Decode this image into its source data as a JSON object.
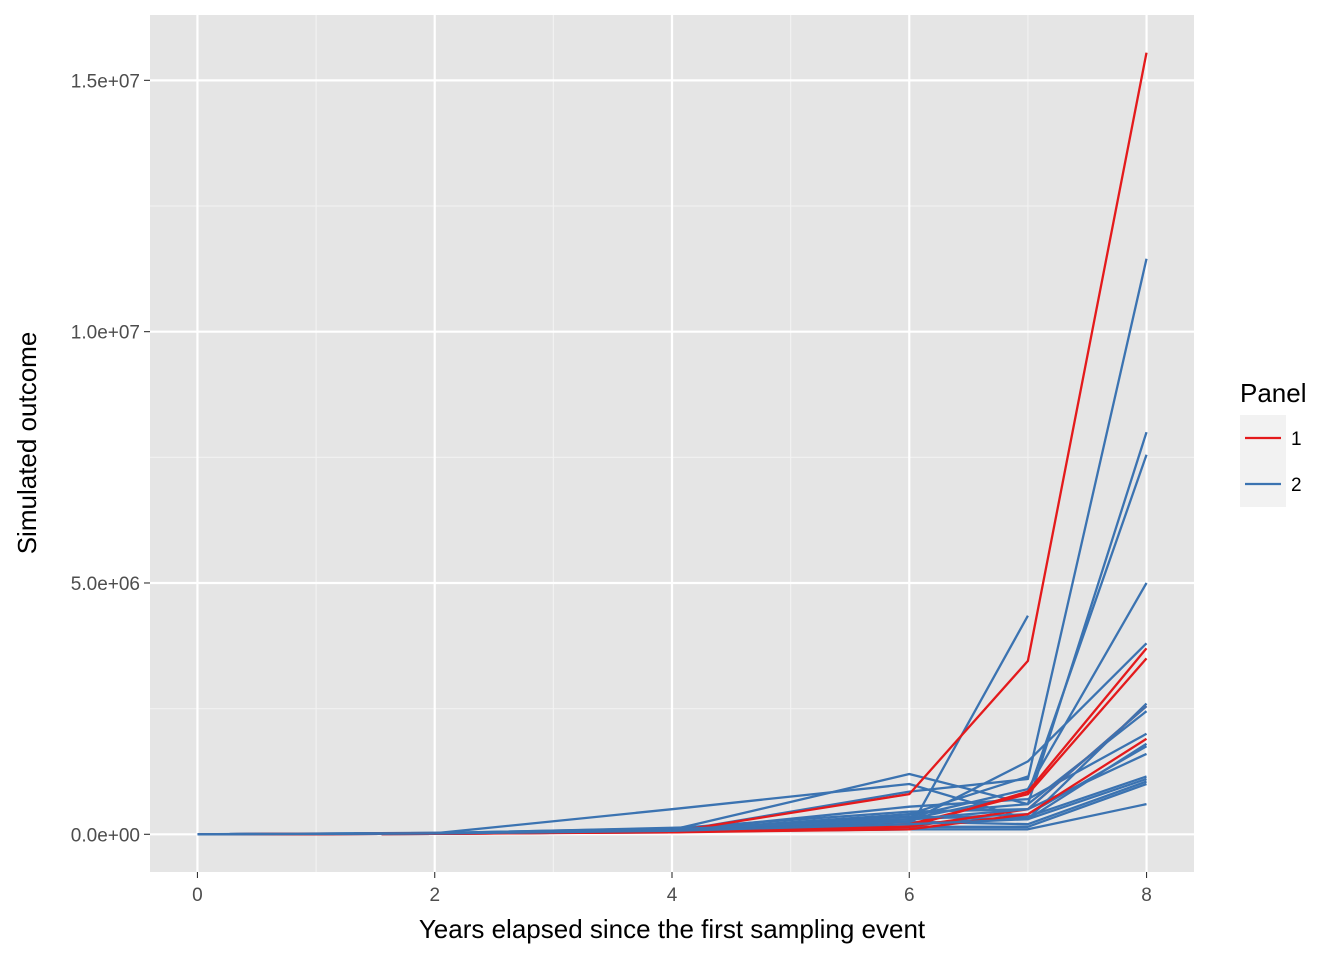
{
  "chart_data": {
    "type": "line",
    "xlabel": "Years elapsed since the first sampling event",
    "ylabel": "Simulated outcome",
    "xlim": [
      -0.4,
      8.4
    ],
    "ylim": [
      -750000,
      16300000
    ],
    "x_ticks": [
      0,
      2,
      4,
      6,
      8
    ],
    "x_tick_labels": [
      "0",
      "2",
      "4",
      "6",
      "8"
    ],
    "y_ticks": [
      0,
      5000000,
      10000000,
      15000000
    ],
    "y_tick_labels": [
      "0.0e+00",
      "5.0e+06",
      "1.0e+07",
      "1.5e+07"
    ],
    "grid": true,
    "legend": {
      "title": "Panel",
      "placement": "right",
      "entries": [
        {
          "label": "1",
          "color": "#e41a1c"
        },
        {
          "label": "2",
          "color": "#3b73b1"
        }
      ]
    },
    "series": [
      {
        "group": "2",
        "color": "#3b73b1",
        "points": [
          [
            0,
            0
          ],
          [
            2,
            20000
          ],
          [
            4,
            60000
          ],
          [
            6,
            100000
          ],
          [
            7,
            4350000
          ]
        ]
      },
      {
        "group": "2",
        "color": "#3b73b1",
        "points": [
          [
            0,
            0
          ],
          [
            2,
            30000
          ],
          [
            4,
            50000
          ],
          [
            6,
            850000
          ],
          [
            7,
            1100000
          ],
          [
            8,
            11450000
          ]
        ]
      },
      {
        "group": "2",
        "color": "#3b73b1",
        "points": [
          [
            0,
            0
          ],
          [
            2,
            15000
          ],
          [
            4,
            40000
          ],
          [
            6,
            400000
          ],
          [
            7,
            600000
          ],
          [
            8,
            8000000
          ]
        ]
      },
      {
        "group": "2",
        "color": "#3b73b1",
        "points": [
          [
            0,
            0
          ],
          [
            2,
            25000
          ],
          [
            4,
            60000
          ],
          [
            6,
            300000
          ],
          [
            7,
            800000
          ],
          [
            8,
            7550000
          ]
        ]
      },
      {
        "group": "2",
        "color": "#3b73b1",
        "points": [
          [
            0,
            0
          ],
          [
            2,
            10000
          ],
          [
            4,
            100000
          ],
          [
            6,
            350000
          ],
          [
            7,
            900000
          ],
          [
            8,
            5000000
          ]
        ]
      },
      {
        "group": "2",
        "color": "#3b73b1",
        "points": [
          [
            0,
            0
          ],
          [
            2,
            20000
          ],
          [
            4,
            80000
          ],
          [
            6,
            250000
          ],
          [
            7,
            1450000
          ],
          [
            8,
            3800000
          ]
        ]
      },
      {
        "group": "2",
        "color": "#3b73b1",
        "points": [
          [
            0,
            0
          ],
          [
            2,
            15000
          ],
          [
            4,
            90000
          ],
          [
            6,
            1200000
          ],
          [
            7,
            600000
          ],
          [
            8,
            2450000
          ]
        ]
      },
      {
        "group": "2",
        "color": "#3b73b1",
        "points": [
          [
            0,
            0
          ],
          [
            2,
            20000
          ],
          [
            4,
            500000
          ],
          [
            6,
            1000000
          ],
          [
            7,
            300000
          ],
          [
            8,
            2600000
          ]
        ]
      },
      {
        "group": "2",
        "color": "#3b73b1",
        "points": [
          [
            0,
            0
          ],
          [
            2,
            10000
          ],
          [
            4,
            70000
          ],
          [
            6,
            550000
          ],
          [
            7,
            700000
          ],
          [
            8,
            2000000
          ]
        ]
      },
      {
        "group": "2",
        "color": "#3b73b1",
        "points": [
          [
            0,
            0
          ],
          [
            2,
            25000
          ],
          [
            4,
            120000
          ],
          [
            6,
            450000
          ],
          [
            7,
            500000
          ],
          [
            8,
            1600000
          ]
        ]
      },
      {
        "group": "2",
        "color": "#3b73b1",
        "points": [
          [
            0,
            0
          ],
          [
            2,
            20000
          ],
          [
            4,
            90000
          ],
          [
            6,
            300000
          ],
          [
            7,
            400000
          ],
          [
            8,
            1750000
          ]
        ]
      },
      {
        "group": "2",
        "color": "#3b73b1",
        "points": [
          [
            0,
            0
          ],
          [
            2,
            15000
          ],
          [
            4,
            110000
          ],
          [
            6,
            200000
          ],
          [
            7,
            350000
          ],
          [
            8,
            1150000
          ]
        ]
      },
      {
        "group": "2",
        "color": "#3b73b1",
        "points": [
          [
            0,
            0
          ],
          [
            2,
            10000
          ],
          [
            4,
            80000
          ],
          [
            6,
            350000
          ],
          [
            7,
            300000
          ],
          [
            8,
            1100000
          ]
        ]
      },
      {
        "group": "2",
        "color": "#3b73b1",
        "points": [
          [
            0,
            0
          ],
          [
            2,
            20000
          ],
          [
            4,
            130000
          ],
          [
            6,
            250000
          ],
          [
            7,
            200000
          ],
          [
            8,
            1050000
          ]
        ]
      },
      {
        "group": "2",
        "color": "#3b73b1",
        "points": [
          [
            0,
            0
          ],
          [
            2,
            15000
          ],
          [
            4,
            60000
          ],
          [
            6,
            150000
          ],
          [
            7,
            150000
          ],
          [
            8,
            1000000
          ]
        ]
      },
      {
        "group": "2",
        "color": "#3b73b1",
        "points": [
          [
            0,
            0
          ],
          [
            2,
            10000
          ],
          [
            4,
            50000
          ],
          [
            6,
            100000
          ],
          [
            7,
            100000
          ],
          [
            8,
            600000
          ]
        ]
      },
      {
        "group": "2",
        "color": "#3b73b1",
        "points": [
          [
            0,
            0
          ],
          [
            2,
            20000
          ],
          [
            4,
            80000
          ],
          [
            6,
            400000
          ],
          [
            7,
            1150000
          ]
        ]
      },
      {
        "group": "1",
        "color": "#e41a1c",
        "points": [
          [
            0,
            0
          ],
          [
            2,
            10000
          ],
          [
            4,
            50000
          ],
          [
            6,
            800000
          ],
          [
            7,
            3450000
          ],
          [
            8,
            15550000
          ]
        ]
      },
      {
        "group": "1",
        "color": "#e41a1c",
        "points": [
          [
            0,
            0
          ],
          [
            2,
            15000
          ],
          [
            4,
            60000
          ],
          [
            6,
            150000
          ],
          [
            7,
            850000
          ],
          [
            8,
            3700000
          ]
        ]
      },
      {
        "group": "1",
        "color": "#e41a1c",
        "points": [
          [
            0,
            0
          ],
          [
            2,
            10000
          ],
          [
            4,
            40000
          ],
          [
            6,
            200000
          ],
          [
            7,
            800000
          ],
          [
            8,
            3500000
          ]
        ]
      },
      {
        "group": "1",
        "color": "#e41a1c",
        "points": [
          [
            0,
            0
          ],
          [
            2,
            10000
          ],
          [
            4,
            50000
          ],
          [
            6,
            150000
          ],
          [
            7,
            500000
          ],
          [
            8,
            2550000
          ]
        ]
      },
      {
        "group": "1",
        "color": "#e41a1c",
        "points": [
          [
            0,
            0
          ],
          [
            2,
            20000
          ],
          [
            4,
            40000
          ],
          [
            6,
            100000
          ],
          [
            7,
            400000
          ],
          [
            8,
            1900000
          ]
        ]
      },
      {
        "group": "2",
        "color": "#3b73b1",
        "points": [
          [
            0,
            0
          ],
          [
            2,
            20000
          ],
          [
            4,
            100000
          ],
          [
            6,
            300000
          ],
          [
            7,
            500000
          ],
          [
            8,
            2550000
          ]
        ]
      },
      {
        "group": "2",
        "color": "#3b73b1",
        "points": [
          [
            0,
            0
          ],
          [
            2,
            15000
          ],
          [
            4,
            70000
          ],
          [
            6,
            200000
          ],
          [
            7,
            300000
          ],
          [
            8,
            1800000
          ]
        ]
      }
    ]
  }
}
